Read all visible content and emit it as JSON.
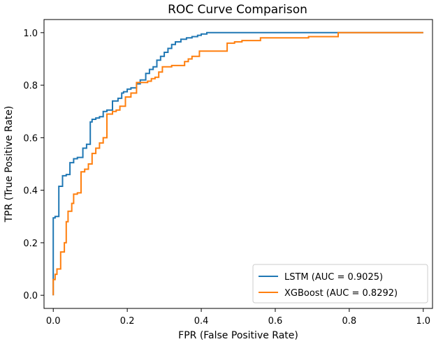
{
  "chart_data": {
    "type": "line",
    "title": "ROC Curve Comparison",
    "xlabel": "FPR (False Positive Rate)",
    "ylabel": "TPR (True Positive Rate)",
    "xlim": [
      -0.025,
      1.025
    ],
    "ylim": [
      -0.05,
      1.05
    ],
    "xticks": [
      0.0,
      0.2,
      0.4,
      0.6,
      0.8,
      1.0
    ],
    "xtick_labels": [
      "0.0",
      "0.2",
      "0.4",
      "0.6",
      "0.8",
      "1.0"
    ],
    "yticks": [
      0.0,
      0.2,
      0.4,
      0.6,
      0.8,
      1.0
    ],
    "ytick_labels": [
      "0.0",
      "0.2",
      "0.4",
      "0.6",
      "0.8",
      "1.0"
    ],
    "grid": false,
    "legend_position": "lower-right",
    "series": [
      {
        "name": "LSTM (AUC = 0.9025)",
        "color": "#1f77b4",
        "x": [
          0.0,
          0.0,
          0.0,
          0.005,
          0.005,
          0.015,
          0.015,
          0.025,
          0.025,
          0.035,
          0.035,
          0.045,
          0.045,
          0.055,
          0.055,
          0.065,
          0.065,
          0.08,
          0.08,
          0.09,
          0.09,
          0.1,
          0.1,
          0.105,
          0.105,
          0.115,
          0.115,
          0.125,
          0.125,
          0.135,
          0.135,
          0.145,
          0.145,
          0.16,
          0.16,
          0.175,
          0.175,
          0.185,
          0.185,
          0.19,
          0.19,
          0.2,
          0.2,
          0.21,
          0.21,
          0.225,
          0.225,
          0.235,
          0.235,
          0.25,
          0.25,
          0.26,
          0.26,
          0.27,
          0.27,
          0.28,
          0.28,
          0.29,
          0.29,
          0.3,
          0.3,
          0.31,
          0.31,
          0.32,
          0.32,
          0.33,
          0.33,
          0.345,
          0.345,
          0.36,
          0.36,
          0.375,
          0.375,
          0.39,
          0.39,
          0.4,
          0.4,
          0.415,
          0.415,
          0.49,
          0.49,
          0.765,
          1.0
        ],
        "y": [
          0.0,
          0.06,
          0.295,
          0.295,
          0.3,
          0.3,
          0.415,
          0.415,
          0.455,
          0.455,
          0.46,
          0.46,
          0.505,
          0.505,
          0.52,
          0.52,
          0.525,
          0.525,
          0.56,
          0.56,
          0.575,
          0.575,
          0.66,
          0.66,
          0.67,
          0.67,
          0.675,
          0.675,
          0.68,
          0.68,
          0.7,
          0.7,
          0.705,
          0.705,
          0.74,
          0.74,
          0.75,
          0.75,
          0.77,
          0.77,
          0.775,
          0.775,
          0.785,
          0.785,
          0.79,
          0.79,
          0.805,
          0.805,
          0.82,
          0.82,
          0.845,
          0.845,
          0.86,
          0.86,
          0.87,
          0.87,
          0.895,
          0.895,
          0.91,
          0.91,
          0.925,
          0.925,
          0.94,
          0.94,
          0.955,
          0.955,
          0.965,
          0.965,
          0.975,
          0.975,
          0.98,
          0.98,
          0.985,
          0.985,
          0.99,
          0.99,
          0.995,
          0.995,
          1.0,
          1.0,
          1.0,
          1.0,
          1.0
        ]
      },
      {
        "name": "XGBoost (AUC = 0.8292)",
        "color": "#ff7f0e",
        "x": [
          0.0,
          0.0,
          0.005,
          0.005,
          0.01,
          0.01,
          0.02,
          0.02,
          0.03,
          0.03,
          0.035,
          0.035,
          0.04,
          0.04,
          0.05,
          0.05,
          0.055,
          0.055,
          0.065,
          0.065,
          0.075,
          0.075,
          0.085,
          0.085,
          0.095,
          0.095,
          0.105,
          0.105,
          0.115,
          0.115,
          0.125,
          0.125,
          0.135,
          0.135,
          0.145,
          0.145,
          0.16,
          0.16,
          0.17,
          0.17,
          0.18,
          0.18,
          0.195,
          0.195,
          0.21,
          0.21,
          0.225,
          0.225,
          0.255,
          0.255,
          0.265,
          0.265,
          0.275,
          0.275,
          0.285,
          0.285,
          0.295,
          0.295,
          0.32,
          0.32,
          0.355,
          0.355,
          0.365,
          0.365,
          0.375,
          0.375,
          0.395,
          0.395,
          0.47,
          0.47,
          0.49,
          0.49,
          0.51,
          0.51,
          0.56,
          0.56,
          0.69,
          0.69,
          0.77,
          0.77,
          1.0
        ],
        "y": [
          0.0,
          0.06,
          0.06,
          0.08,
          0.08,
          0.1,
          0.1,
          0.165,
          0.165,
          0.2,
          0.2,
          0.28,
          0.28,
          0.32,
          0.32,
          0.35,
          0.35,
          0.385,
          0.385,
          0.39,
          0.39,
          0.47,
          0.47,
          0.48,
          0.48,
          0.5,
          0.5,
          0.54,
          0.54,
          0.56,
          0.56,
          0.58,
          0.58,
          0.6,
          0.6,
          0.69,
          0.69,
          0.7,
          0.7,
          0.705,
          0.705,
          0.72,
          0.72,
          0.755,
          0.755,
          0.77,
          0.77,
          0.81,
          0.81,
          0.815,
          0.815,
          0.825,
          0.825,
          0.83,
          0.83,
          0.85,
          0.85,
          0.87,
          0.87,
          0.875,
          0.875,
          0.89,
          0.89,
          0.9,
          0.9,
          0.91,
          0.91,
          0.93,
          0.93,
          0.96,
          0.96,
          0.965,
          0.965,
          0.97,
          0.97,
          0.98,
          0.98,
          0.985,
          0.985,
          1.0,
          1.0
        ]
      }
    ]
  }
}
